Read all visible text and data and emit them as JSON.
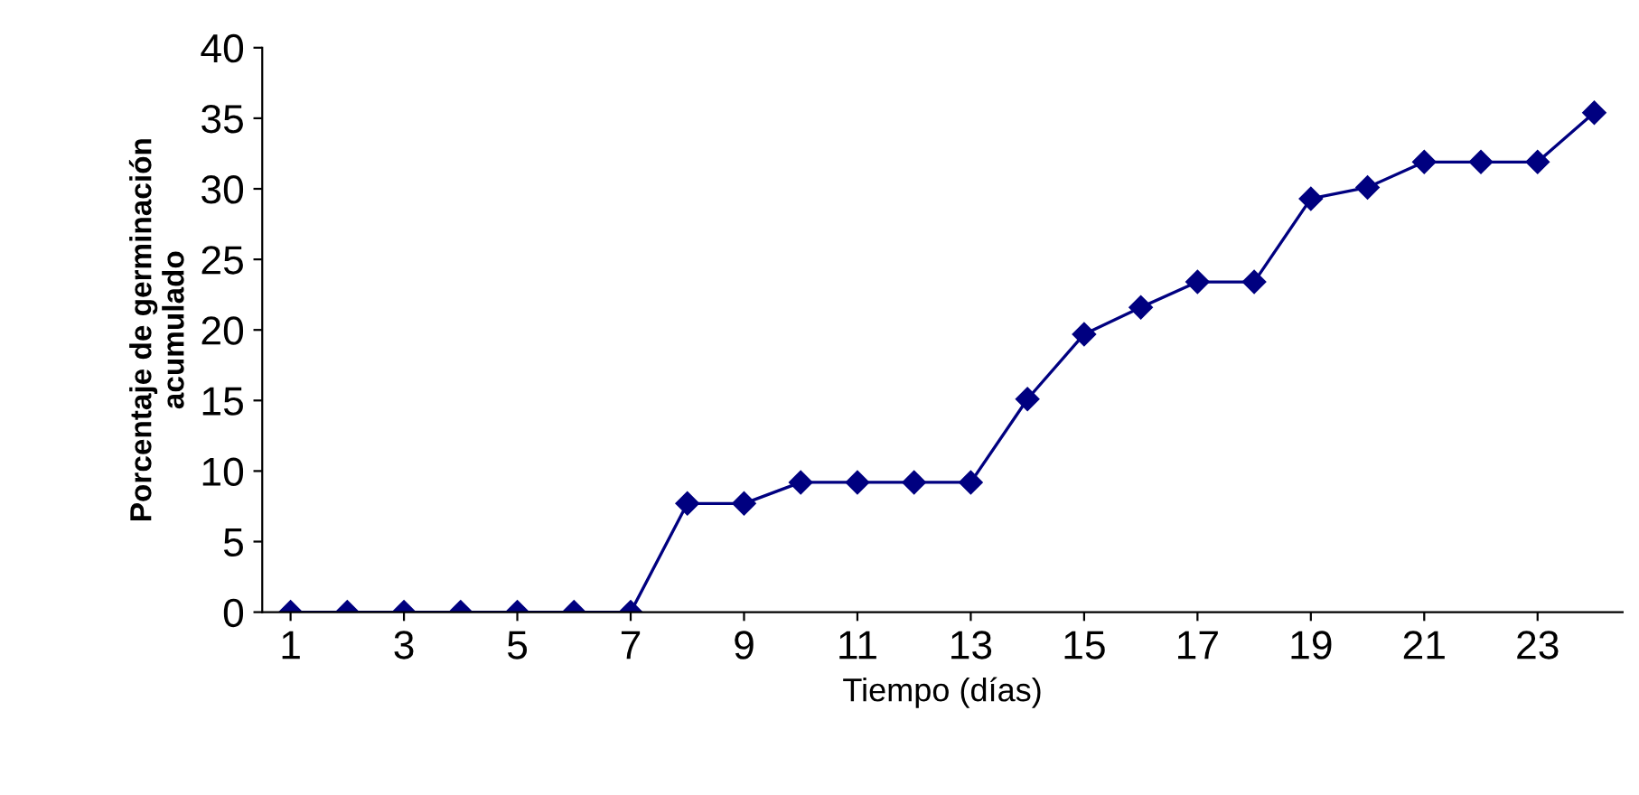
{
  "chart_data": {
    "type": "line",
    "xlabel": "Tiempo (días)",
    "ylabel": "Porcentaje de germinación\nacumulado",
    "x": [
      1,
      2,
      3,
      4,
      5,
      6,
      7,
      8,
      9,
      10,
      11,
      12,
      13,
      14,
      15,
      16,
      17,
      18,
      19,
      20,
      21,
      22,
      23,
      24
    ],
    "series": [
      {
        "color": "#000080",
        "values": [
          0,
          0,
          0,
          0,
          0,
          0,
          0,
          7.7,
          7.7,
          9.2,
          9.2,
          9.2,
          9.2,
          15.1,
          19.7,
          21.6,
          23.4,
          23.4,
          29.3,
          30.1,
          31.9,
          31.9,
          31.9,
          35.4
        ]
      }
    ],
    "xlim": [
      0.5,
      24.5
    ],
    "xticks": [
      1,
      3,
      5,
      7,
      9,
      11,
      13,
      15,
      17,
      19,
      21,
      23
    ],
    "ylim": [
      0,
      40
    ],
    "yticks": [
      0,
      5,
      10,
      15,
      20,
      25,
      30,
      35,
      40
    ],
    "grid": false,
    "legend": false,
    "marker": "diamond",
    "line_style": "solid"
  }
}
